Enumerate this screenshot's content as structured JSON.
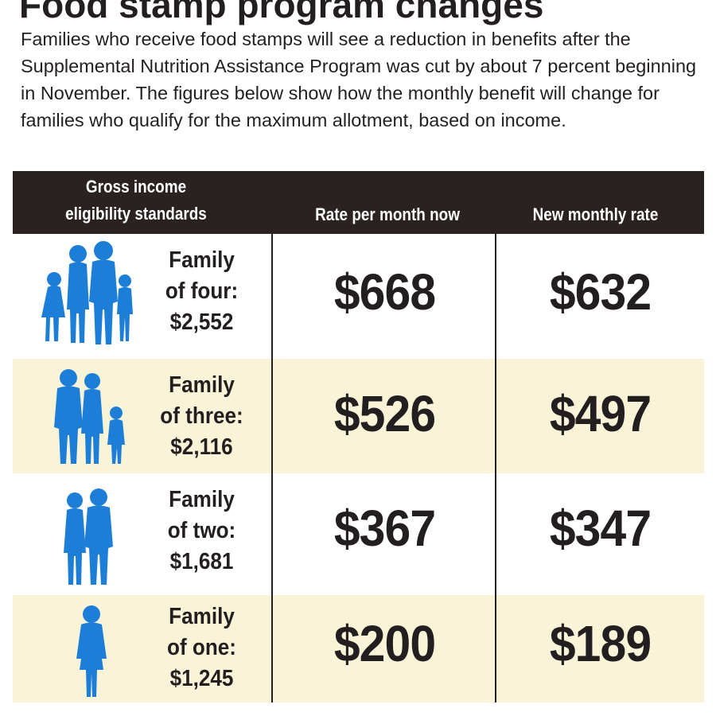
{
  "title": "Food stamp program changes",
  "intro": "Families who receive food stamps will see a reduction in benefits after the Supplemental Nutrition Assistance Program was cut by about 7 percent beginning in November. The figures below show how the monthly benefit will change for families who qualify for the maximum allotment, based on income.",
  "colors": {
    "header_bg": "#2a2220",
    "row_shade": "#f9f4d8",
    "icon": "#1c7ed6",
    "text": "#231f20"
  },
  "chart_data": {
    "type": "table",
    "columns": [
      "Gross income eligibility standards",
      "Rate per month now",
      "New monthly rate"
    ],
    "rows": [
      {
        "label_lines": [
          "Family",
          "of four:",
          "$2,552"
        ],
        "now": "$668",
        "new": "$632",
        "icon": "family-of-four-icon"
      },
      {
        "label_lines": [
          "Family",
          "of three:",
          "$2,116"
        ],
        "now": "$526",
        "new": "$497",
        "icon": "family-of-three-icon"
      },
      {
        "label_lines": [
          "Family",
          "of two:",
          "$1,681"
        ],
        "now": "$367",
        "new": "$347",
        "icon": "family-of-two-icon"
      },
      {
        "label_lines": [
          "Family",
          "of one:",
          "$1,245"
        ],
        "now": "$200",
        "new": "$189",
        "icon": "person-icon"
      }
    ]
  }
}
